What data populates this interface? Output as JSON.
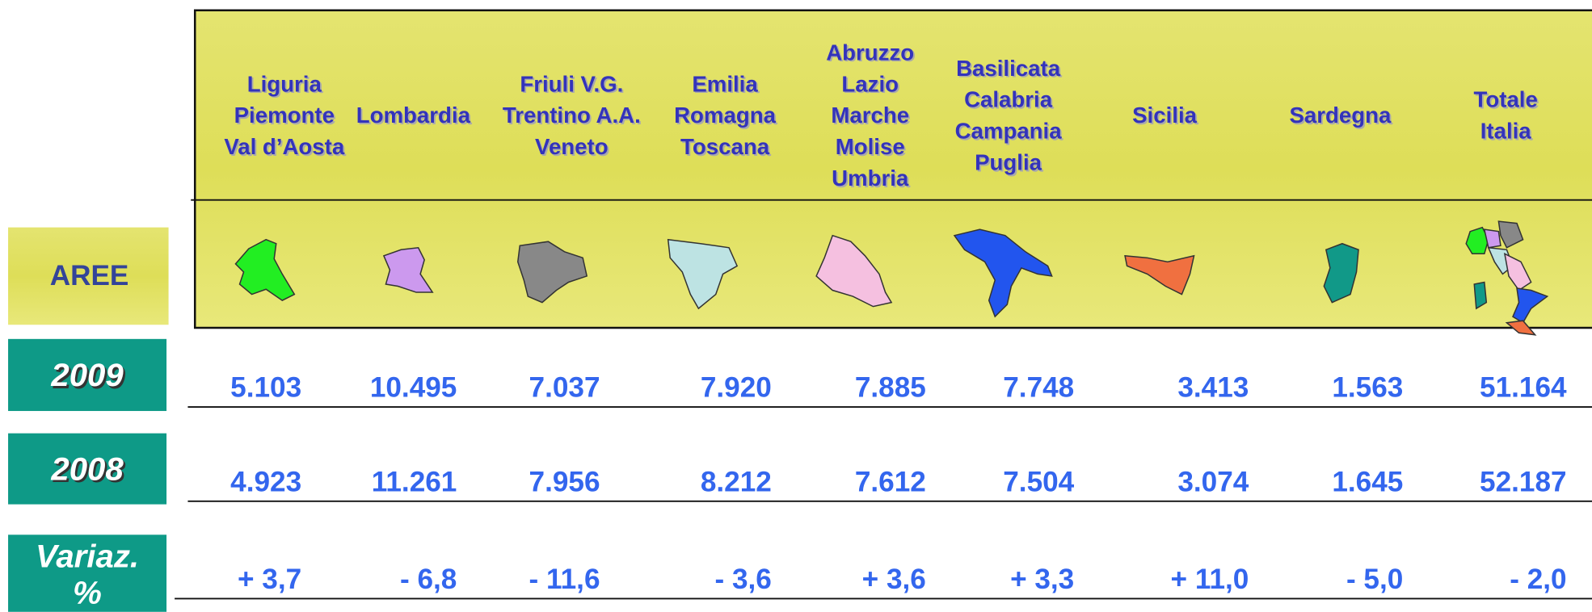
{
  "header": {
    "columns": [
      [
        "Liguria",
        "Piemonte",
        "Val d’Aosta"
      ],
      [
        "Lombardia"
      ],
      [
        "Friuli V.G.",
        "Trentino A.A.",
        "Veneto"
      ],
      [
        "Emilia",
        "Romagna",
        "Toscana"
      ],
      [
        "Abruzzo",
        "Lazio",
        "Marche",
        "Molise",
        "Umbria"
      ],
      [
        "Basilicata",
        "Calabria",
        "Campania",
        "Puglia"
      ],
      [
        "Sicilia"
      ],
      [
        "Sardegna"
      ],
      [
        "Totale",
        "Italia"
      ]
    ]
  },
  "areas_label": "AREE",
  "rows": [
    {
      "label": "2009",
      "values": [
        "5.103",
        "10.495",
        "7.037",
        "7.920",
        "7.885",
        "7.748",
        "3.413",
        "1.563",
        "51.164"
      ]
    },
    {
      "label": "2008",
      "values": [
        "4.923",
        "11.261",
        "7.956",
        "8.212",
        "7.612",
        "7.504",
        "3.074",
        "1.645",
        "52.187"
      ]
    },
    {
      "label": "Variaz. %",
      "values": [
        "+ 3,7",
        "- 6,8",
        "- 11,6",
        "- 3,6",
        "+ 3,6",
        "+ 3,3",
        "+ 11,0",
        "- 5,0",
        "- 2,0"
      ]
    }
  ]
}
